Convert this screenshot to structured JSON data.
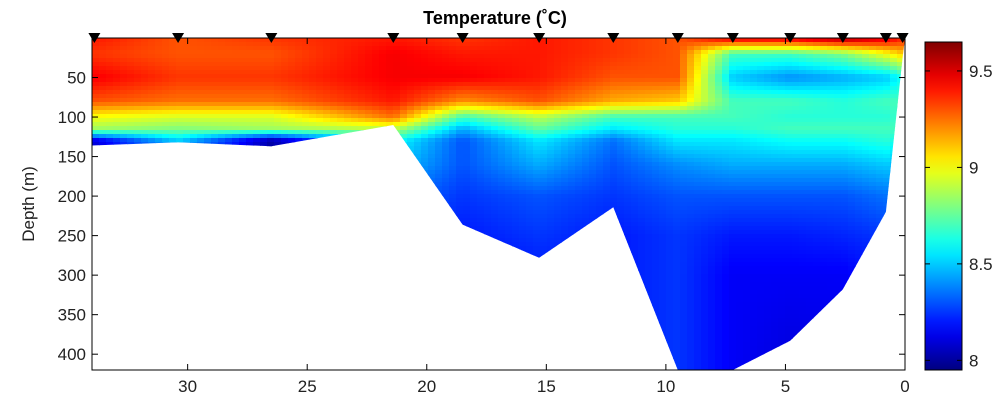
{
  "chart_data": {
    "type": "heatmap",
    "title": "Temperature (˚C)",
    "ylabel": "Depth (m)",
    "xlabel": "",
    "xlim": [
      34,
      0
    ],
    "ylim": [
      0,
      420
    ],
    "y_reversed": true,
    "x_ticks": [
      30,
      25,
      20,
      15,
      10,
      5,
      0
    ],
    "y_ticks": [
      50,
      100,
      150,
      200,
      250,
      300,
      350,
      400
    ],
    "colorbar": {
      "min": 7.95,
      "max": 9.65,
      "ticks": [
        8,
        8.5,
        9,
        9.5
      ],
      "tick_labels": [
        "8",
        "8.5",
        "9",
        "9.5"
      ],
      "colormap": "jet"
    },
    "station_markers_x": [
      33.9,
      30.4,
      26.5,
      21.4,
      18.5,
      15.3,
      12.2,
      9.5,
      7.2,
      4.8,
      2.6,
      0.8,
      0.1
    ],
    "bottom_profile": [
      {
        "x": 34.0,
        "depth": 136
      },
      {
        "x": 30.4,
        "depth": 132
      },
      {
        "x": 26.5,
        "depth": 137
      },
      {
        "x": 21.4,
        "depth": 110
      },
      {
        "x": 18.5,
        "depth": 236
      },
      {
        "x": 15.3,
        "depth": 278
      },
      {
        "x": 12.2,
        "depth": 214
      },
      {
        "x": 9.5,
        "depth": 420
      },
      {
        "x": 7.2,
        "depth": 420
      },
      {
        "x": 4.8,
        "depth": 383
      },
      {
        "x": 2.6,
        "depth": 318
      },
      {
        "x": 0.8,
        "depth": 220
      },
      {
        "x": 0.1,
        "depth": 25
      }
    ],
    "temperature_layers": [
      {
        "depth": 0,
        "values": [
          9.4,
          9.3,
          9.35,
          9.4,
          9.35,
          9.4,
          9.35,
          9.3,
          9.5,
          9.5,
          9.6,
          9.5,
          9.4
        ]
      },
      {
        "depth": 20,
        "values": [
          9.35,
          9.3,
          9.3,
          9.45,
          9.4,
          9.4,
          9.35,
          9.3,
          8.7,
          8.7,
          8.8,
          9.0,
          9.1
        ]
      },
      {
        "depth": 50,
        "values": [
          9.45,
          9.35,
          9.35,
          9.45,
          9.45,
          9.4,
          9.3,
          9.3,
          8.5,
          8.4,
          8.45,
          8.5,
          8.6
        ]
      },
      {
        "depth": 80,
        "values": [
          9.3,
          9.25,
          9.25,
          9.4,
          9.2,
          9.3,
          9.15,
          9.1,
          8.7,
          8.7,
          8.65,
          8.7,
          8.7
        ]
      },
      {
        "depth": 100,
        "values": [
          9.0,
          8.95,
          8.95,
          9.25,
          8.7,
          8.9,
          8.7,
          8.7,
          8.7,
          8.65,
          8.65,
          8.65,
          8.7
        ]
      },
      {
        "depth": 115,
        "values": [
          8.85,
          8.8,
          8.85,
          8.9,
          8.45,
          8.75,
          8.55,
          8.65,
          8.65,
          8.7,
          8.7,
          8.7,
          8.7
        ]
      },
      {
        "depth": 130,
        "values": [
          8.1,
          8.5,
          8.0,
          8.6,
          8.3,
          8.55,
          8.35,
          8.55,
          8.55,
          8.6,
          8.6,
          8.65,
          8.6
        ]
      },
      {
        "depth": 160,
        "values": [
          8.1,
          8.4,
          8.1,
          8.5,
          8.3,
          8.45,
          8.3,
          8.4,
          8.45,
          8.45,
          8.45,
          8.5,
          8.45
        ]
      },
      {
        "depth": 200,
        "values": [
          8.1,
          8.3,
          8.1,
          8.35,
          8.25,
          8.3,
          8.25,
          8.3,
          8.3,
          8.3,
          8.3,
          8.35,
          8.3
        ]
      },
      {
        "depth": 250,
        "values": [
          8.1,
          8.2,
          8.1,
          8.25,
          8.2,
          8.25,
          8.2,
          8.25,
          8.2,
          8.2,
          8.22,
          8.25,
          8.25
        ]
      },
      {
        "depth": 300,
        "values": [
          8.1,
          8.15,
          8.1,
          8.2,
          8.15,
          8.2,
          8.2,
          8.25,
          8.15,
          8.15,
          8.15,
          8.2,
          8.2
        ]
      },
      {
        "depth": 420,
        "values": [
          8.1,
          8.1,
          8.1,
          8.15,
          8.15,
          8.15,
          8.2,
          8.25,
          8.15,
          8.1,
          8.12,
          8.15,
          8.15
        ]
      }
    ]
  }
}
